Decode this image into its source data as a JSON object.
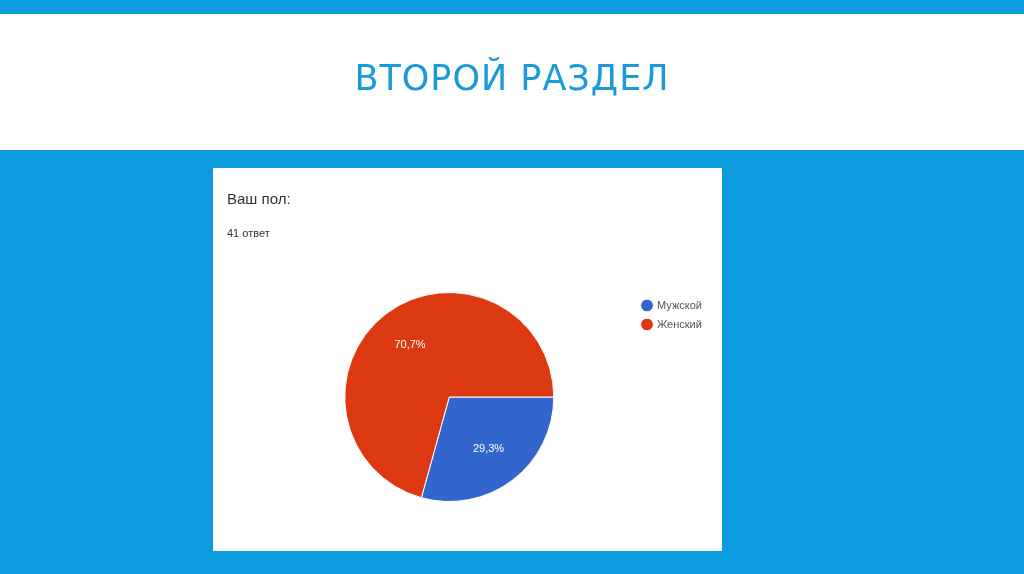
{
  "chart_data": {
    "type": "pie",
    "title": "Ваш пол:",
    "subtitle": "41 ответ",
    "annotations": [
      "ВТОРОЙ РАЗДЕЛ"
    ],
    "categories": [
      "Мужской",
      "Женский"
    ],
    "values": [
      29.3,
      70.7
    ],
    "colors": [
      "#3366cc",
      "#dc3912"
    ],
    "value_labels": [
      "29,3%",
      "70,7%"
    ],
    "legend": "top right"
  }
}
